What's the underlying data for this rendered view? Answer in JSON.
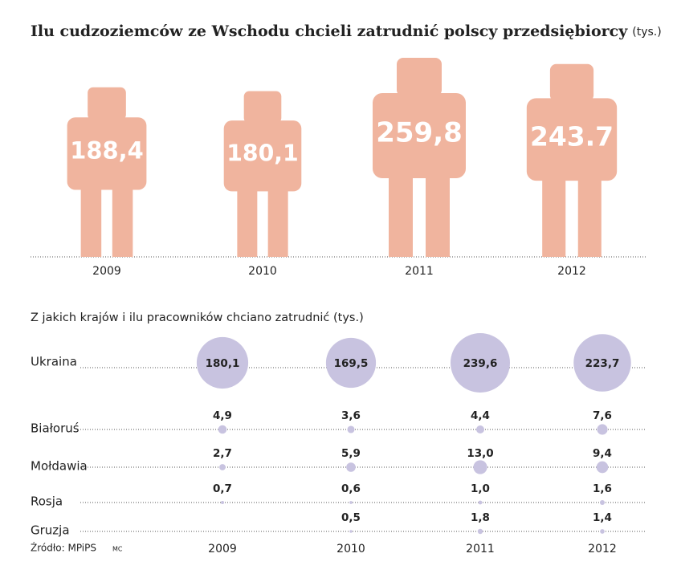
{
  "chart_data": [
    {
      "type": "pictogram",
      "title": "Ilu cudzoziemców ze Wschodu chcieli zatrudnić polscy przedsiębiorcy",
      "unit": "(tys.)",
      "categories": [
        "2009",
        "2010",
        "2011",
        "2012"
      ],
      "values": [
        188.4,
        180.1,
        259.8,
        243.7
      ],
      "value_labels": [
        "188,4",
        "180,1",
        "259,8",
        "243.7"
      ],
      "color": "#f0b49e"
    },
    {
      "type": "bubble",
      "title": "Z jakich krajów i ilu pracowników chciano zatrudnić (tys.)",
      "categories": [
        "2009",
        "2010",
        "2011",
        "2012"
      ],
      "color": "#c8c3e0",
      "series": [
        {
          "name": "Ukraina",
          "values": [
            180.1,
            169.5,
            239.6,
            223.7
          ],
          "value_labels": [
            "180,1",
            "169,5",
            "239,6",
            "223,7"
          ]
        },
        {
          "name": "Białoruś",
          "values": [
            4.9,
            3.6,
            4.4,
            7.6
          ],
          "value_labels": [
            "4,9",
            "3,6",
            "4,4",
            "7,6"
          ]
        },
        {
          "name": "Mołdawia",
          "values": [
            2.7,
            5.9,
            13.0,
            9.4
          ],
          "value_labels": [
            "2,7",
            "5,9",
            "13,0",
            "9,4"
          ]
        },
        {
          "name": "Rosja",
          "values": [
            0.7,
            0.6,
            1.0,
            1.6
          ],
          "value_labels": [
            "0,7",
            "0,6",
            "1,0",
            "1,6"
          ]
        },
        {
          "name": "Gruzja",
          "values": [
            null,
            0.5,
            1.8,
            1.4
          ],
          "value_labels": [
            null,
            "0,5",
            "1,8",
            "1,4"
          ]
        }
      ]
    }
  ],
  "source": "Źródło: MPiPS",
  "credit": "MC"
}
